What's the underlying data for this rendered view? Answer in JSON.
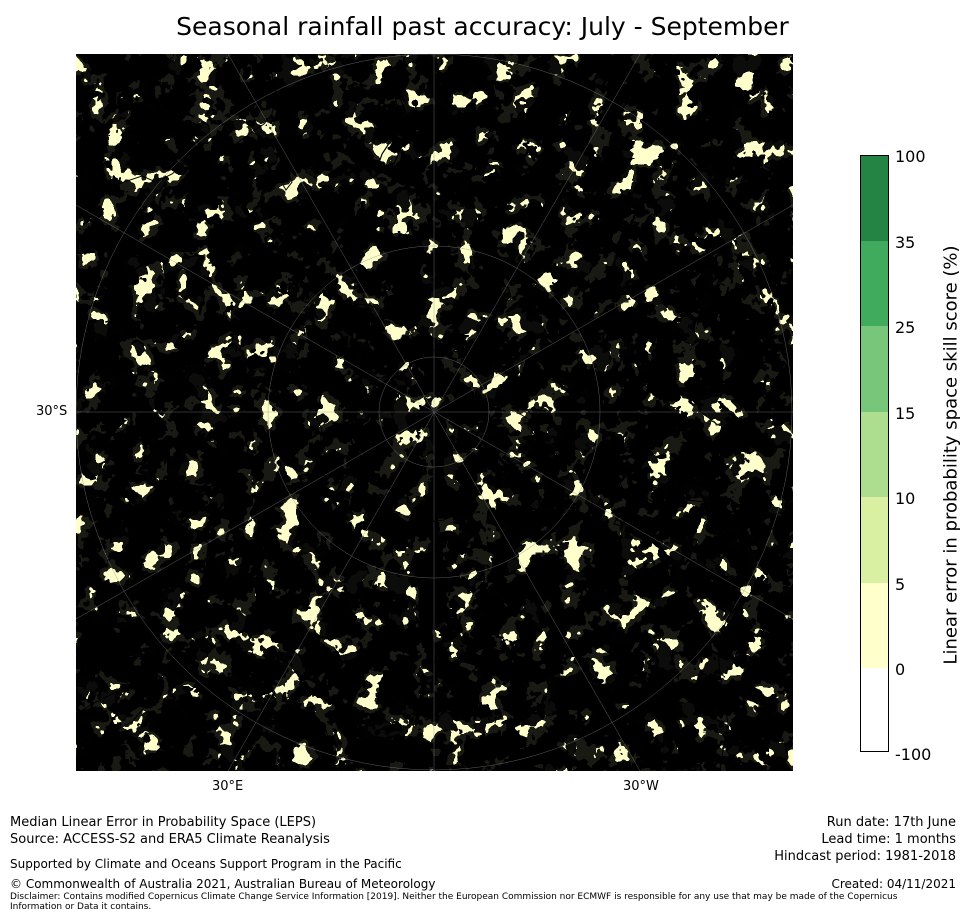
{
  "title": "Seasonal rainfall past accuracy: July - September",
  "map": {
    "labels": {
      "lat_30s": "30°S",
      "lon_30e": "30°E",
      "lon_30w": "30°W"
    },
    "projection": "south polar stereographic",
    "colors": {
      "land_outline": "#000000",
      "grid_lines": "#888888"
    }
  },
  "colorbar": {
    "label": "Linear error in probability space skill score (%)",
    "ticks": [
      "100",
      "35",
      "25",
      "15",
      "10",
      "5",
      "0",
      "-100"
    ],
    "bins": [
      {
        "range": "35 to 100",
        "color": "#238443"
      },
      {
        "range": "25 to 35",
        "color": "#41ab5d"
      },
      {
        "range": "15 to 25",
        "color": "#78c679"
      },
      {
        "range": "10 to 15",
        "color": "#addd8e"
      },
      {
        "range": "5 to 10",
        "color": "#d9f0a3"
      },
      {
        "range": "0 to 5",
        "color": "#ffffcc"
      },
      {
        "range": "-100 to 0",
        "color": "#ffffff"
      }
    ]
  },
  "footer": {
    "line1": "Median Linear Error in Probability Space (LEPS)",
    "line2": "Source: ACCESS-S2 and ERA5 Climate Reanalysis",
    "supported": "Supported by Climate and Oceans Support Program in the Pacific",
    "copyright": "© Commonwealth of Australia 2021, Australian Bureau of Meteorology",
    "disclaimer": "Disclaimer: Contains modified Copernicus Climate Change Service Information [2019]. Neither the European Commission nor ECMWF is responsible for any use that may be made of the Copernicus Information or Data it contains.",
    "run_date": "Run date: 17th June",
    "lead_time": "Lead time: 1 months",
    "hindcast": "Hindcast period: 1981-2018",
    "created": "Created: 04/11/2021"
  }
}
